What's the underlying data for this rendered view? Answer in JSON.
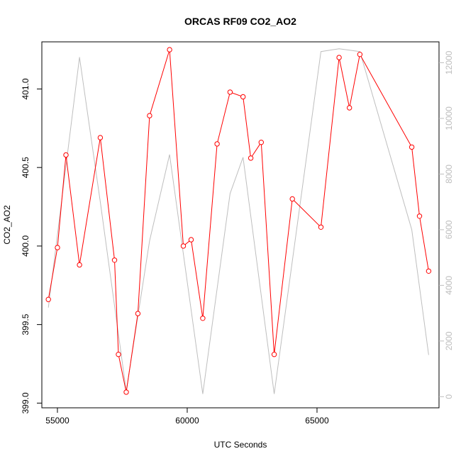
{
  "chart_data": {
    "type": "line",
    "title": "ORCAS RF09 CO2_AO2",
    "xlabel": "UTC Seconds",
    "ylabel": "CO2_AO2",
    "x_ticks": [
      "55000",
      "60000",
      "65000"
    ],
    "y_ticks": [
      "399.0",
      "399.5",
      "400.0",
      "400.5",
      "401.0"
    ],
    "y2_ticks": [
      "0",
      "2000",
      "4000",
      "6000",
      "8000",
      "10000",
      "12000"
    ],
    "xlim": [
      54400,
      69700
    ],
    "ylim": [
      398.97,
      401.3
    ],
    "y2lim": [
      -400,
      12750
    ],
    "colors": {
      "primary": "#ff0000",
      "secondary": "#bebebe"
    },
    "series": [
      {
        "axis": "left",
        "style": "line+points",
        "x": [
          54650,
          55000,
          55330,
          55850,
          56650,
          57200,
          57350,
          57650,
          58100,
          58550,
          59320,
          59850,
          60150,
          60600,
          61150,
          61650,
          62150,
          62450,
          62850,
          63350,
          64050,
          65150,
          65850,
          66250,
          66650,
          68650,
          68950,
          69300
        ],
        "values": [
          399.66,
          399.99,
          400.58,
          399.88,
          400.69,
          399.91,
          399.31,
          399.07,
          399.57,
          400.83,
          401.25,
          400.0,
          400.04,
          399.54,
          400.65,
          400.98,
          400.95,
          400.56,
          400.66,
          399.31,
          400.3,
          400.12,
          401.2,
          400.88,
          401.22,
          400.63,
          400.19,
          399.84
        ]
      },
      {
        "axis": "right",
        "style": "line",
        "x": [
          54650,
          55850,
          56650,
          57650,
          58550,
          59320,
          60600,
          61650,
          62150,
          63350,
          65150,
          65850,
          66650,
          68650,
          69300
        ],
        "values": [
          3200,
          12200,
          7000,
          200,
          5600,
          8700,
          100,
          7300,
          8600,
          100,
          12400,
          12500,
          12400,
          6000,
          1500
        ]
      }
    ]
  }
}
